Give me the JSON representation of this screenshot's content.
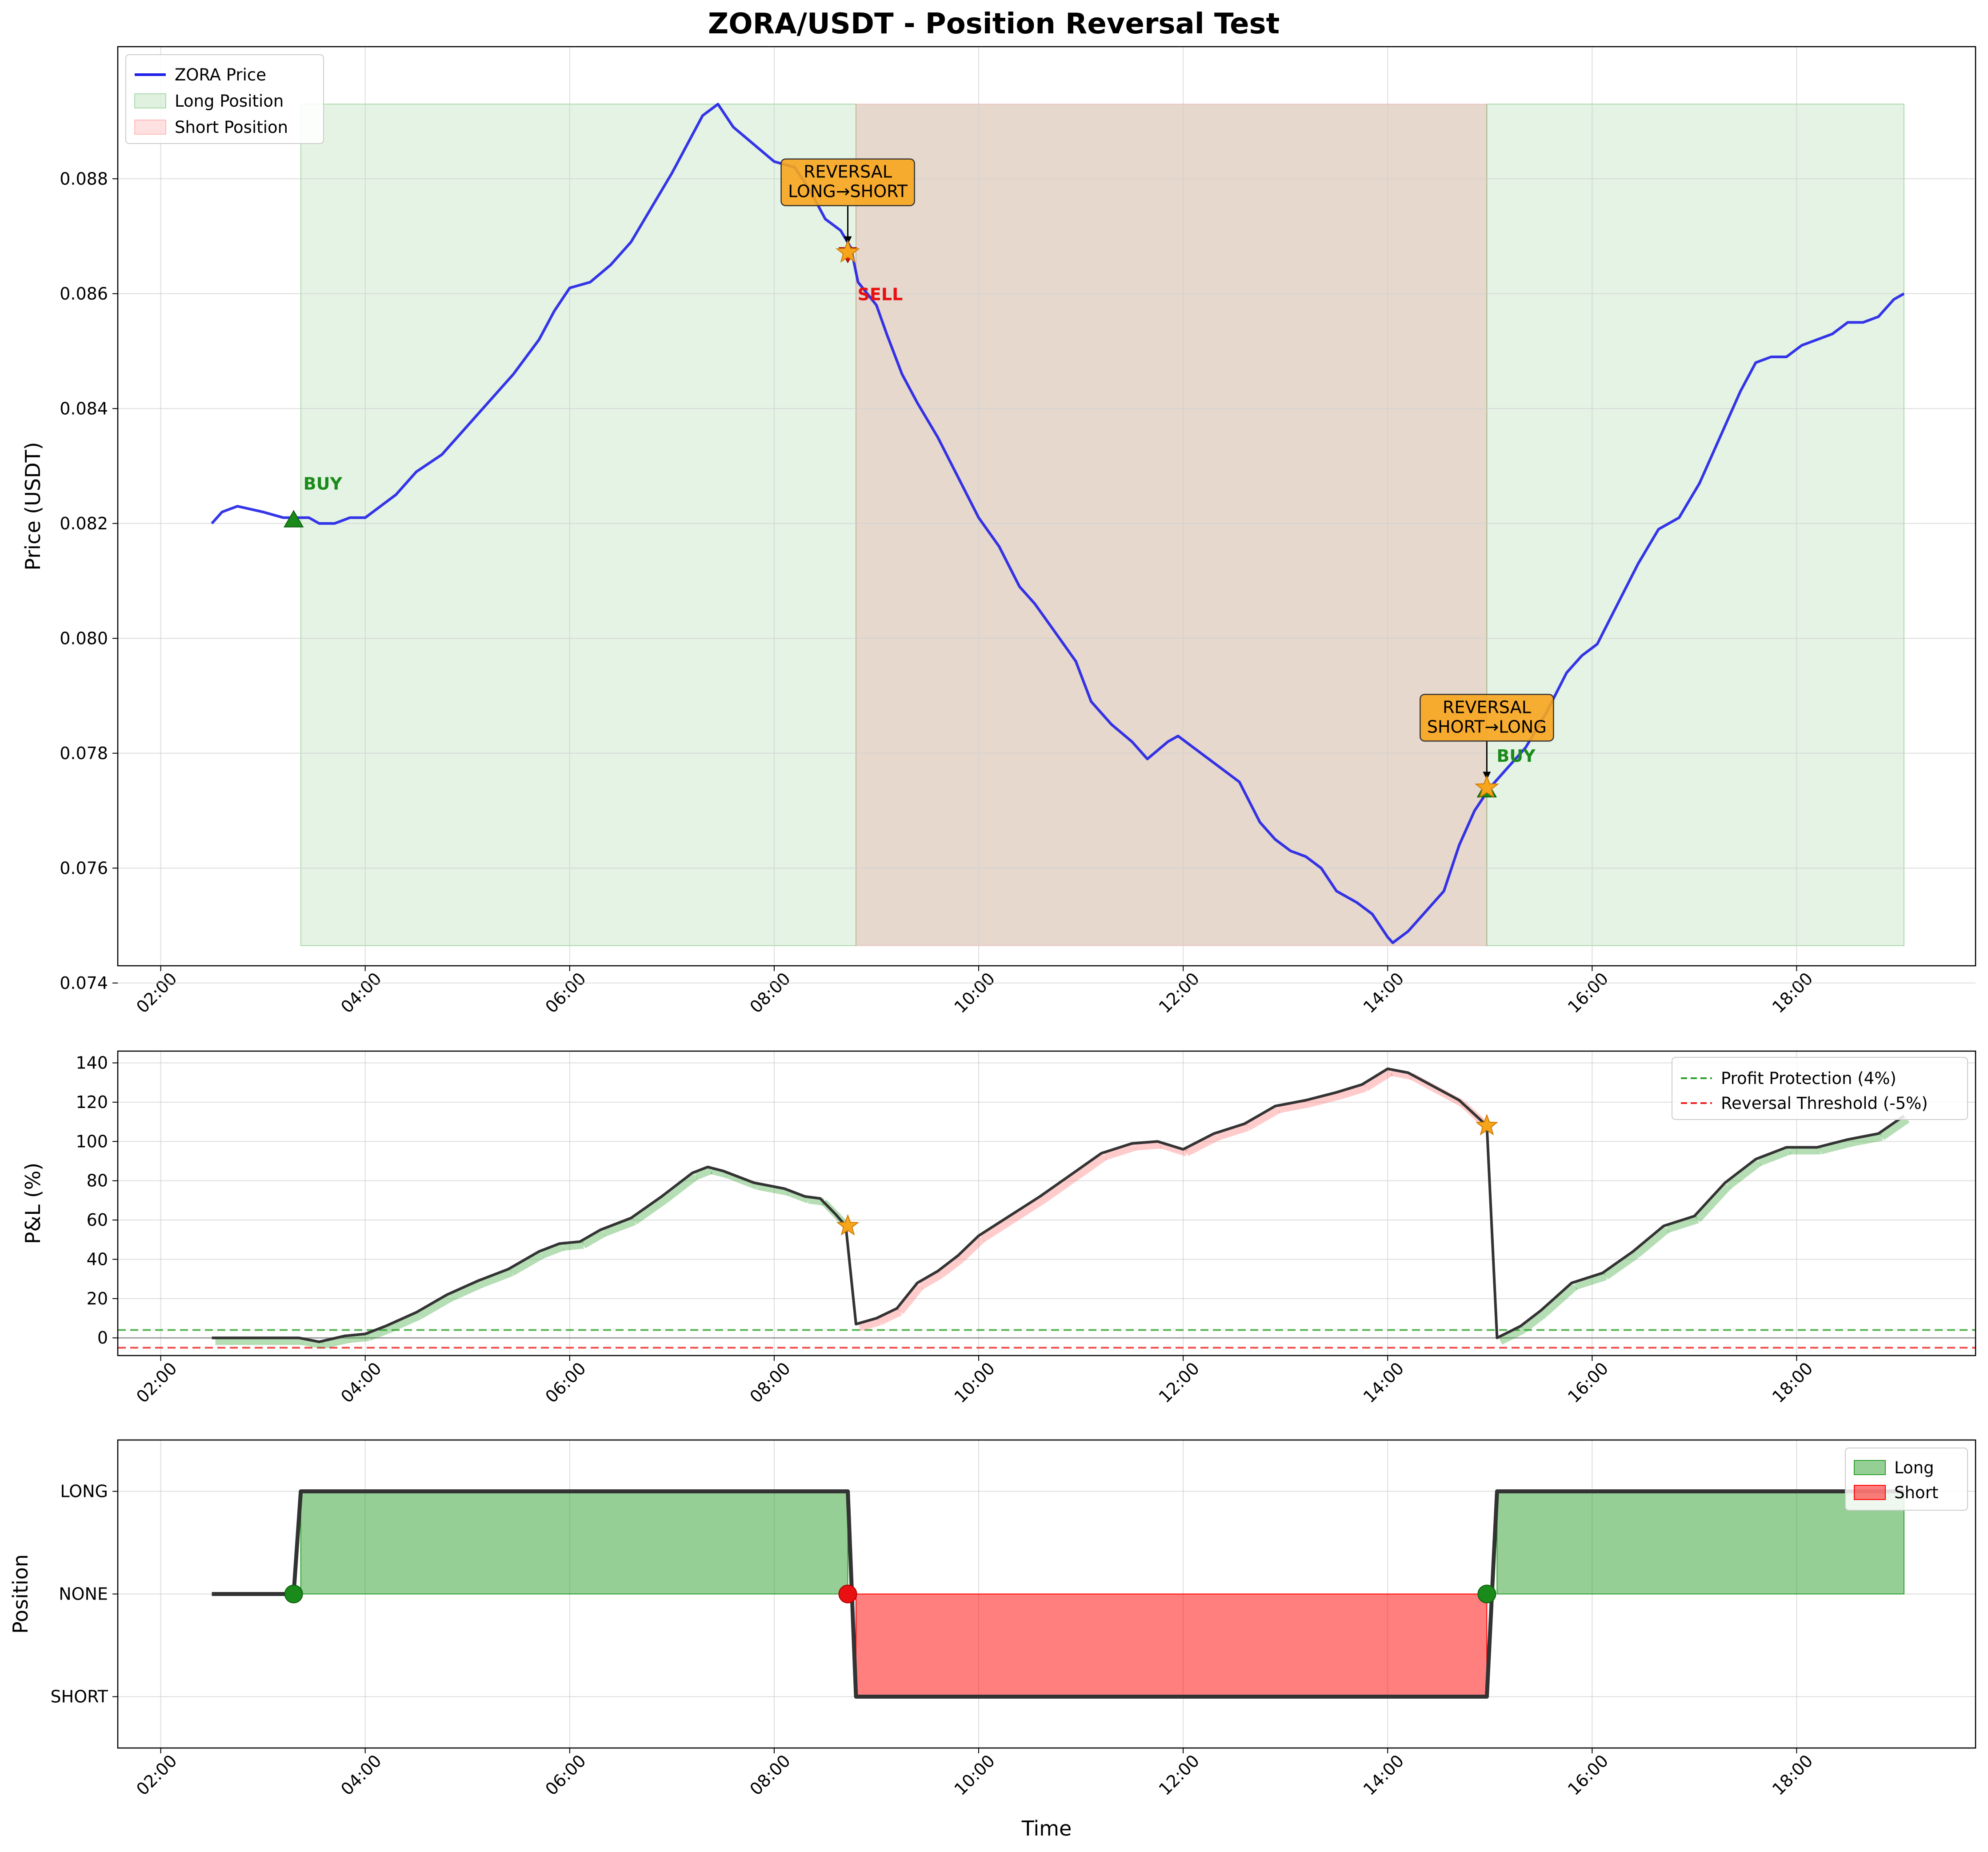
{
  "title": "ZORA/USDT - Position Reversal Test",
  "colors": {
    "price": "#1f1fe8",
    "long_fill": "#2ca02c",
    "short_fill": "#ff6b6b",
    "buy": "#1a8a1a",
    "sell": "#e81010",
    "reversal": "#f7a51d",
    "pnl_line": "#333333",
    "profit_protection": "#2ca02c",
    "reversal_threshold": "#ee2222"
  },
  "x_ticks": [
    "02:00",
    "04:00",
    "06:00",
    "08:00",
    "10:00",
    "12:00",
    "14:00",
    "16:00",
    "18:00"
  ],
  "chart_data": [
    {
      "type": "line",
      "panel": "price",
      "ylabel": "Price (USDT)",
      "xlim": [
        1.58,
        19.75
      ],
      "ylim": [
        0.0743,
        0.0903
      ],
      "y_ticks": [
        "0.074",
        "0.076",
        "0.078",
        "0.080",
        "0.082",
        "0.084",
        "0.086",
        "0.088"
      ],
      "grid": true,
      "legend_position": "top-left",
      "series": [
        {
          "name": "ZORA Price",
          "x": [
            2.5,
            2.6,
            2.75,
            3.0,
            3.2,
            3.3,
            3.45,
            3.55,
            3.7,
            3.85,
            4.0,
            4.15,
            4.3,
            4.5,
            4.75,
            5.0,
            5.2,
            5.45,
            5.7,
            5.85,
            6.0,
            6.2,
            6.4,
            6.6,
            6.8,
            7.0,
            7.15,
            7.3,
            7.45,
            7.6,
            7.8,
            8.0,
            8.2,
            8.35,
            8.5,
            8.65,
            8.75,
            8.82,
            9.0,
            9.1,
            9.25,
            9.4,
            9.6,
            9.8,
            10.0,
            10.2,
            10.4,
            10.55,
            10.75,
            10.95,
            11.1,
            11.3,
            11.5,
            11.65,
            11.85,
            11.95,
            12.1,
            12.25,
            12.4,
            12.55,
            12.75,
            12.9,
            13.05,
            13.2,
            13.35,
            13.5,
            13.7,
            13.85,
            14.0,
            14.05,
            14.2,
            14.35,
            14.55,
            14.7,
            14.85,
            15.0,
            15.15,
            15.35,
            15.55,
            15.75,
            15.9,
            16.05,
            16.25,
            16.45,
            16.65,
            16.85,
            17.05,
            17.25,
            17.45,
            17.6,
            17.75,
            17.9,
            18.05,
            18.2,
            18.35,
            18.5,
            18.65,
            18.8,
            18.95,
            19.05
          ],
          "y": [
            0.082,
            0.0822,
            0.0823,
            0.0822,
            0.0821,
            0.0821,
            0.0821,
            0.082,
            0.082,
            0.0821,
            0.0821,
            0.0823,
            0.0825,
            0.0829,
            0.0832,
            0.0837,
            0.0841,
            0.0846,
            0.0852,
            0.0857,
            0.0861,
            0.0862,
            0.0865,
            0.0869,
            0.0875,
            0.0881,
            0.0886,
            0.0891,
            0.0893,
            0.0889,
            0.0886,
            0.0883,
            0.0882,
            0.0878,
            0.0873,
            0.0871,
            0.0868,
            0.0862,
            0.0858,
            0.0853,
            0.0846,
            0.0841,
            0.0835,
            0.0828,
            0.0821,
            0.0816,
            0.0809,
            0.0806,
            0.0801,
            0.0796,
            0.0789,
            0.0785,
            0.0782,
            0.0779,
            0.0782,
            0.0783,
            0.0781,
            0.0779,
            0.0777,
            0.0775,
            0.0768,
            0.0765,
            0.0763,
            0.0762,
            0.076,
            0.0756,
            0.0754,
            0.0752,
            0.0748,
            0.0747,
            0.0749,
            0.0752,
            0.0756,
            0.0764,
            0.077,
            0.0774,
            0.0777,
            0.0781,
            0.0787,
            0.0794,
            0.0797,
            0.0799,
            0.0806,
            0.0813,
            0.0819,
            0.0821,
            0.0827,
            0.0835,
            0.0843,
            0.0848,
            0.0849,
            0.0849,
            0.0851,
            0.0852,
            0.0853,
            0.0855,
            0.0855,
            0.0856,
            0.0859,
            0.086
          ]
        }
      ],
      "regions": [
        {
          "name": "Long Position",
          "x0": 3.37,
          "x1": 8.8
        },
        {
          "name": "Short Position",
          "x0": 8.8,
          "x1": 14.97
        },
        {
          "name": "",
          "x0": 14.97,
          "x1": 19.05
        }
      ],
      "region_yrange": [
        0.07465,
        0.0893
      ],
      "markers": [
        {
          "type": "buy",
          "label": "BUY",
          "x": 3.3,
          "y": 0.08205
        },
        {
          "type": "sell",
          "label": "SELL",
          "x": 8.72,
          "y": 0.0867
        },
        {
          "type": "buy",
          "label": "BUY",
          "x": 14.97,
          "y": 0.07735
        }
      ],
      "annotations": [
        {
          "text_line1": "REVERSAL",
          "text_line2": "LONG→SHORT",
          "x": 8.72,
          "y": 0.08672
        },
        {
          "text_line1": "REVERSAL",
          "text_line2": "SHORT→LONG",
          "x": 14.97,
          "y": 0.0774
        }
      ]
    },
    {
      "type": "line",
      "panel": "pnl",
      "ylabel": "P&L (%)",
      "xlim": [
        1.58,
        19.75
      ],
      "ylim": [
        -9,
        146
      ],
      "y_ticks": [
        "0",
        "20",
        "40",
        "60",
        "80",
        "100",
        "120",
        "140"
      ],
      "grid": true,
      "legend_position": "top-right",
      "series": [
        {
          "name": "",
          "x": [
            2.5,
            3.35,
            3.55,
            3.8,
            4.0,
            4.2,
            4.5,
            4.8,
            5.1,
            5.4,
            5.7,
            5.9,
            6.1,
            6.3,
            6.6,
            6.9,
            7.2,
            7.35,
            7.5,
            7.8,
            8.1,
            8.3,
            8.45,
            8.6,
            8.7,
            8.8,
            9.0,
            9.2,
            9.4,
            9.6,
            9.8,
            10.0,
            10.3,
            10.6,
            10.9,
            11.2,
            11.5,
            11.75,
            12.0,
            12.3,
            12.6,
            12.9,
            13.2,
            13.5,
            13.75,
            14.0,
            14.2,
            14.45,
            14.7,
            14.97,
            15.07,
            15.3,
            15.5,
            15.8,
            16.1,
            16.4,
            16.7,
            17.0,
            17.3,
            17.6,
            17.9,
            18.2,
            18.5,
            18.8,
            19.05
          ],
          "y": [
            0,
            0,
            -2,
            1,
            2,
            6,
            13,
            22,
            29,
            35,
            44,
            48,
            49,
            55,
            61,
            72,
            84,
            87,
            85,
            79,
            76,
            72,
            71,
            63,
            57,
            7,
            10,
            15,
            28,
            34,
            42,
            52,
            62,
            72,
            83,
            94,
            99,
            100,
            96,
            104,
            109,
            118,
            121,
            125,
            129,
            137,
            135,
            128,
            121,
            108,
            0,
            6,
            14,
            28,
            33,
            44,
            57,
            62,
            79,
            91,
            97,
            97,
            101,
            104,
            113
          ]
        },
        {
          "name": "Profit Protection (4%)",
          "y": 4
        },
        {
          "name": "Reversal Threshold (-5%)",
          "y": -5
        }
      ],
      "markers": [
        {
          "type": "reversal",
          "x": 8.72,
          "y": 57
        },
        {
          "type": "reversal",
          "x": 14.97,
          "y": 108
        }
      ]
    },
    {
      "type": "area",
      "panel": "position",
      "ylabel": "Position",
      "xlabel": "Time",
      "xlim": [
        1.58,
        19.75
      ],
      "ylim": [
        -1.5,
        1.5
      ],
      "y_ticks": [
        "SHORT",
        "NONE",
        "LONG"
      ],
      "grid": true,
      "legend_position": "top-right",
      "series": [
        {
          "name": "",
          "x": [
            2.5,
            3.3,
            3.37,
            8.72,
            8.8,
            14.97,
            15.07,
            19.05
          ],
          "y": [
            0,
            0,
            1,
            1,
            -1,
            -1,
            1,
            1
          ]
        }
      ],
      "fills": [
        {
          "name": "Long",
          "x0": 3.37,
          "x1": 8.72
        },
        {
          "name": "Short",
          "x0": 8.8,
          "x1": 14.97
        },
        {
          "name": "",
          "x0": 15.07,
          "x1": 19.05
        }
      ],
      "markers": [
        {
          "type": "buy",
          "x": 3.3,
          "y": 0
        },
        {
          "type": "sell",
          "x": 8.72,
          "y": 0
        },
        {
          "type": "buy",
          "x": 14.97,
          "y": 0
        }
      ]
    }
  ]
}
